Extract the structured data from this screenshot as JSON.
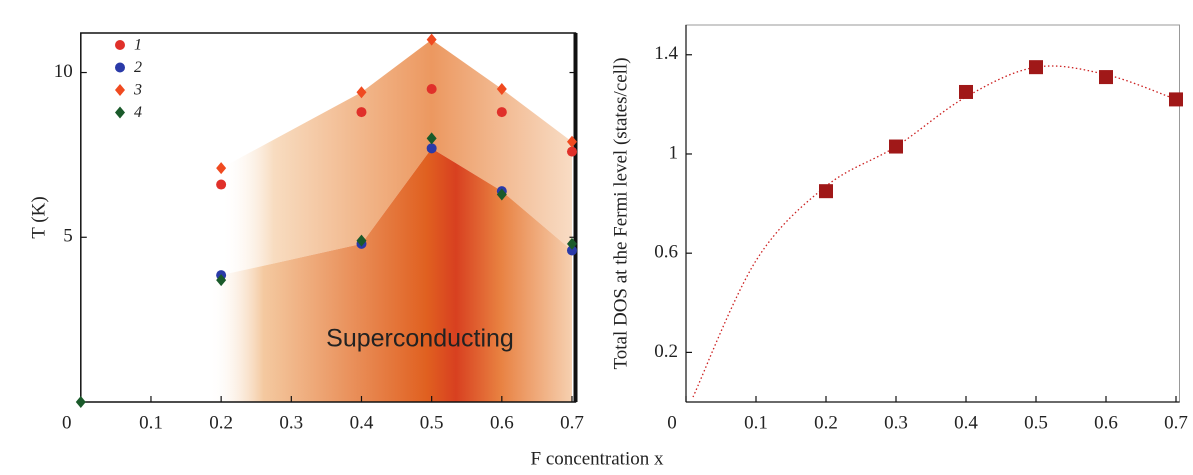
{
  "chart_data": [
    {
      "type": "scatter",
      "ylabel": "T (K)",
      "annotation": "Superconducting",
      "xlim": [
        0,
        0.705
      ],
      "ylim": [
        0,
        11.2
      ],
      "xticks": [
        0,
        0.1,
        0.2,
        0.3,
        0.4,
        0.5,
        0.6,
        0.7
      ],
      "yticks": [
        5,
        10
      ],
      "series": [
        {
          "name": "1",
          "color": "#e0302a",
          "marker": "circle",
          "x": [
            0.2,
            0.4,
            0.5,
            0.6,
            0.7
          ],
          "values": [
            6.6,
            8.8,
            9.5,
            8.8,
            7.6
          ]
        },
        {
          "name": "2",
          "color": "#2a3aa8",
          "marker": "circle",
          "x": [
            0.2,
            0.4,
            0.5,
            0.6,
            0.7
          ],
          "values": [
            3.85,
            4.8,
            7.7,
            6.4,
            4.6
          ]
        },
        {
          "name": "3",
          "color": "#f04a20",
          "marker": "diamond",
          "x": [
            0.2,
            0.4,
            0.5,
            0.6,
            0.7
          ],
          "values": [
            7.1,
            9.4,
            11.0,
            9.5,
            7.9
          ]
        },
        {
          "name": "4",
          "color": "#1a5a2a",
          "marker": "diamond",
          "x": [
            0,
            0.2,
            0.4,
            0.5,
            0.6,
            0.7
          ],
          "values": [
            0,
            3.7,
            4.9,
            8.0,
            6.3,
            4.8
          ]
        }
      ]
    },
    {
      "type": "line",
      "xlabel": "F concentration x",
      "ylabel": "Total DOS at the Fermi level (states/cell)",
      "xlim": [
        0,
        0.705
      ],
      "ylim": [
        0,
        1.52
      ],
      "xticks": [
        0,
        0.1,
        0.2,
        0.3,
        0.4,
        0.5,
        0.6,
        0.7
      ],
      "yticks": [
        0.2,
        0.6,
        1.0,
        1.4
      ],
      "series": [
        {
          "color": "#cc2020",
          "style": "dotted",
          "x": [
            0.01,
            0.1,
            0.2,
            0.3,
            0.4,
            0.5,
            0.6,
            0.7
          ],
          "values": [
            0.02,
            0.57,
            0.87,
            1.03,
            1.23,
            1.35,
            1.32,
            1.22
          ]
        },
        {
          "color": "#a01818",
          "marker": "square",
          "x": [
            0.2,
            0.3,
            0.4,
            0.5,
            0.6,
            0.7
          ],
          "values": [
            0.85,
            1.03,
            1.25,
            1.35,
            1.31,
            1.22
          ]
        }
      ]
    }
  ]
}
